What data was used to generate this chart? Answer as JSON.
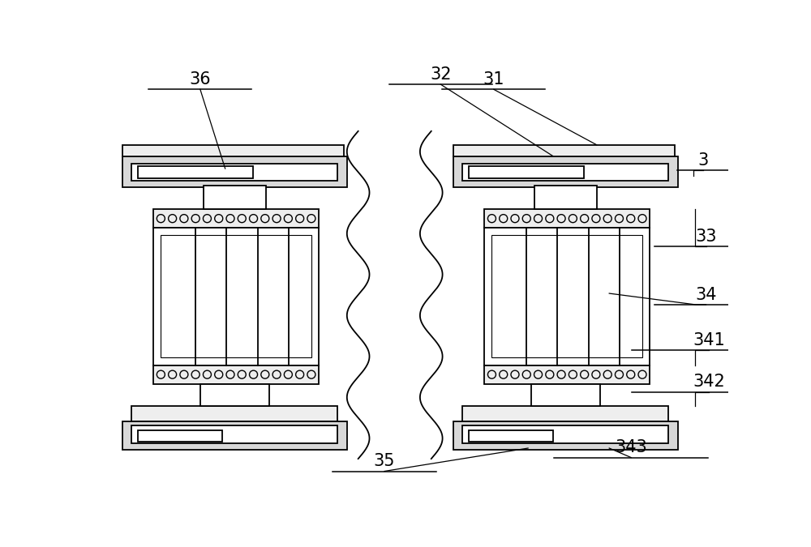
{
  "bg_color": "#ffffff",
  "lw": 1.3,
  "fig_width": 10.0,
  "fig_height": 6.75,
  "label_fs": 15,
  "line_color": "#000000",
  "gray_fill": "#d8d8d8",
  "white_fill": "#ffffff",
  "light_fill": "#eeeeee"
}
